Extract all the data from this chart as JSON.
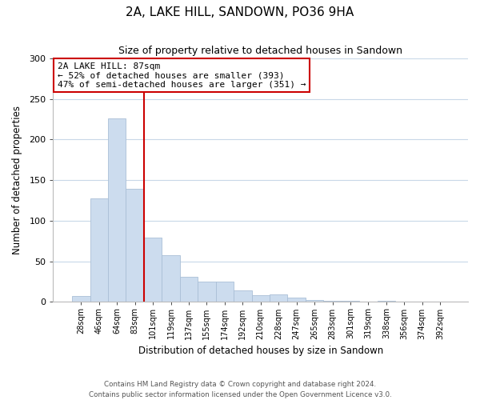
{
  "title": "2A, LAKE HILL, SANDOWN, PO36 9HA",
  "subtitle": "Size of property relative to detached houses in Sandown",
  "xlabel": "Distribution of detached houses by size in Sandown",
  "ylabel": "Number of detached properties",
  "bar_labels": [
    "28sqm",
    "46sqm",
    "64sqm",
    "83sqm",
    "101sqm",
    "119sqm",
    "137sqm",
    "155sqm",
    "174sqm",
    "192sqm",
    "210sqm",
    "228sqm",
    "247sqm",
    "265sqm",
    "283sqm",
    "301sqm",
    "319sqm",
    "338sqm",
    "356sqm",
    "374sqm",
    "392sqm"
  ],
  "bar_values": [
    7,
    128,
    226,
    139,
    79,
    58,
    31,
    25,
    25,
    14,
    8,
    9,
    5,
    2,
    1,
    1,
    0,
    1,
    0,
    0,
    0
  ],
  "bar_color": "#ccdcee",
  "bar_edge_color": "#aabfd6",
  "vline_color": "#cc0000",
  "vline_x_index": 3,
  "annotation_title": "2A LAKE HILL: 87sqm",
  "annotation_line1": "← 52% of detached houses are smaller (393)",
  "annotation_line2": "47% of semi-detached houses are larger (351) →",
  "annotation_box_edge": "#cc0000",
  "ylim": [
    0,
    300
  ],
  "yticks": [
    0,
    50,
    100,
    150,
    200,
    250,
    300
  ],
  "footer_line1": "Contains HM Land Registry data © Crown copyright and database right 2024.",
  "footer_line2": "Contains public sector information licensed under the Open Government Licence v3.0.",
  "bg_color": "#ffffff",
  "grid_color": "#c8d8e8"
}
